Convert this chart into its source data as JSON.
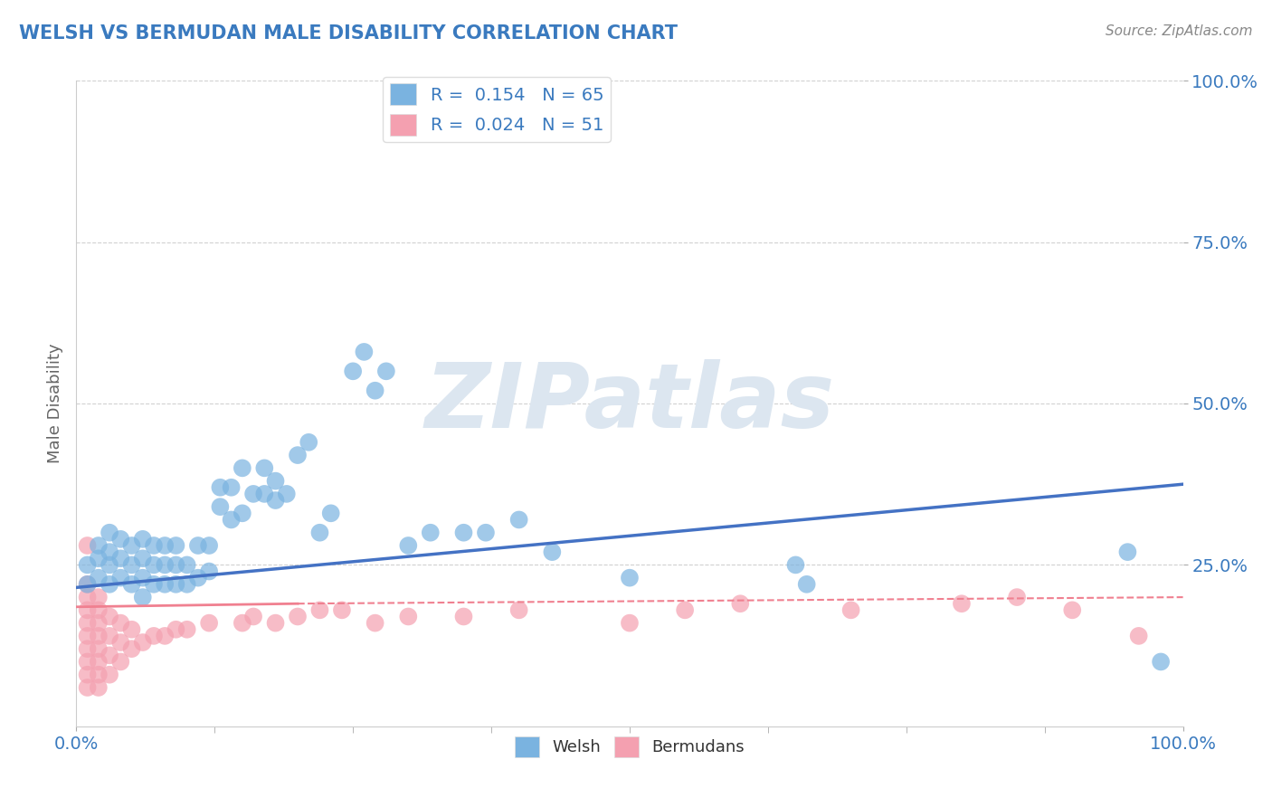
{
  "title": "WELSH VS BERMUDAN MALE DISABILITY CORRELATION CHART",
  "source": "Source: ZipAtlas.com",
  "ylabel": "Male Disability",
  "xlim": [
    0.0,
    1.0
  ],
  "ylim": [
    0.0,
    1.0
  ],
  "title_color": "#3a7abf",
  "source_color": "#888888",
  "background_color": "#ffffff",
  "grid_color": "#cccccc",
  "welsh_color": "#7ab3e0",
  "bermudan_color": "#f4a0b0",
  "welsh_line_color": "#4472c4",
  "bermudan_line_color": "#f08090",
  "watermark_color": "#dce6f0",
  "legend_welsh_R": "0.154",
  "legend_welsh_N": "65",
  "legend_bermudan_R": "0.024",
  "legend_bermudan_N": "51",
  "welsh_line_x0": 0.0,
  "welsh_line_y0": 0.215,
  "welsh_line_x1": 1.0,
  "welsh_line_y1": 0.375,
  "bermudan_line_x0": 0.0,
  "bermudan_line_y0": 0.185,
  "bermudan_line_x1": 1.0,
  "bermudan_line_y1": 0.2,
  "welsh_scatter_x": [
    0.01,
    0.01,
    0.02,
    0.02,
    0.02,
    0.03,
    0.03,
    0.03,
    0.03,
    0.04,
    0.04,
    0.04,
    0.05,
    0.05,
    0.05,
    0.06,
    0.06,
    0.06,
    0.06,
    0.07,
    0.07,
    0.07,
    0.08,
    0.08,
    0.08,
    0.09,
    0.09,
    0.09,
    0.1,
    0.1,
    0.11,
    0.11,
    0.12,
    0.12,
    0.13,
    0.13,
    0.14,
    0.14,
    0.15,
    0.15,
    0.16,
    0.17,
    0.17,
    0.18,
    0.18,
    0.19,
    0.2,
    0.21,
    0.22,
    0.23,
    0.25,
    0.26,
    0.27,
    0.28,
    0.3,
    0.32,
    0.35,
    0.37,
    0.4,
    0.43,
    0.5,
    0.65,
    0.66,
    0.95,
    0.98
  ],
  "welsh_scatter_y": [
    0.22,
    0.25,
    0.23,
    0.26,
    0.28,
    0.22,
    0.25,
    0.27,
    0.3,
    0.23,
    0.26,
    0.29,
    0.22,
    0.25,
    0.28,
    0.2,
    0.23,
    0.26,
    0.29,
    0.22,
    0.25,
    0.28,
    0.22,
    0.25,
    0.28,
    0.22,
    0.25,
    0.28,
    0.22,
    0.25,
    0.23,
    0.28,
    0.24,
    0.28,
    0.34,
    0.37,
    0.32,
    0.37,
    0.33,
    0.4,
    0.36,
    0.4,
    0.36,
    0.35,
    0.38,
    0.36,
    0.42,
    0.44,
    0.3,
    0.33,
    0.55,
    0.58,
    0.52,
    0.55,
    0.28,
    0.3,
    0.3,
    0.3,
    0.32,
    0.27,
    0.23,
    0.25,
    0.22,
    0.27,
    0.1
  ],
  "bermudan_scatter_x": [
    0.01,
    0.01,
    0.01,
    0.01,
    0.01,
    0.01,
    0.01,
    0.01,
    0.01,
    0.01,
    0.02,
    0.02,
    0.02,
    0.02,
    0.02,
    0.02,
    0.02,
    0.02,
    0.03,
    0.03,
    0.03,
    0.03,
    0.04,
    0.04,
    0.04,
    0.05,
    0.05,
    0.06,
    0.07,
    0.08,
    0.09,
    0.1,
    0.12,
    0.15,
    0.16,
    0.18,
    0.2,
    0.22,
    0.24,
    0.27,
    0.3,
    0.35,
    0.4,
    0.5,
    0.55,
    0.6,
    0.7,
    0.8,
    0.85,
    0.9,
    0.96
  ],
  "bermudan_scatter_y": [
    0.06,
    0.08,
    0.1,
    0.12,
    0.14,
    0.16,
    0.18,
    0.2,
    0.22,
    0.28,
    0.06,
    0.08,
    0.1,
    0.12,
    0.14,
    0.16,
    0.18,
    0.2,
    0.08,
    0.11,
    0.14,
    0.17,
    0.1,
    0.13,
    0.16,
    0.12,
    0.15,
    0.13,
    0.14,
    0.14,
    0.15,
    0.15,
    0.16,
    0.16,
    0.17,
    0.16,
    0.17,
    0.18,
    0.18,
    0.16,
    0.17,
    0.17,
    0.18,
    0.16,
    0.18,
    0.19,
    0.18,
    0.19,
    0.2,
    0.18,
    0.14
  ]
}
